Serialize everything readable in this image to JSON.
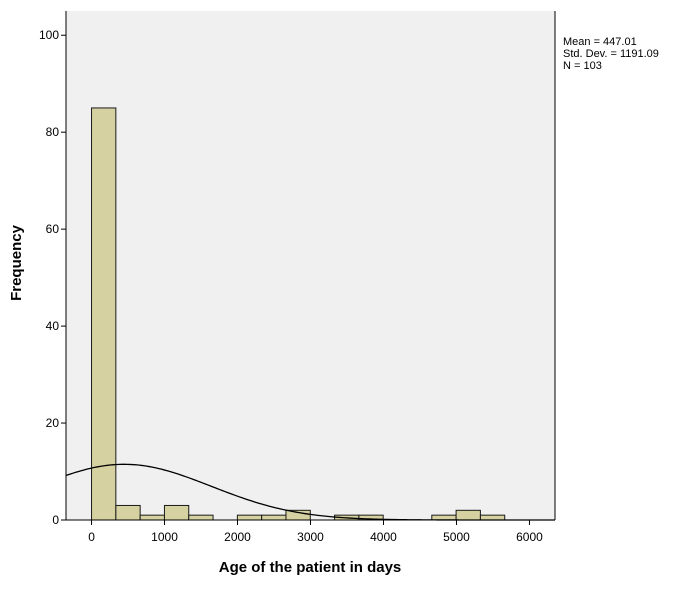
{
  "chart_data": {
    "type": "bar",
    "subtype": "histogram",
    "xlabel": "Age of the patient in days",
    "ylabel": "Frequency",
    "xlim": [
      -350,
      6350
    ],
    "ylim": [
      0,
      105
    ],
    "xticks": [
      0,
      1000,
      2000,
      3000,
      4000,
      5000,
      6000
    ],
    "yticks": [
      0,
      20,
      40,
      60,
      80,
      100
    ],
    "bin_width": 333,
    "bins": [
      {
        "start": 0,
        "end": 333,
        "count": 85
      },
      {
        "start": 333,
        "end": 666,
        "count": 3
      },
      {
        "start": 666,
        "end": 999,
        "count": 1
      },
      {
        "start": 999,
        "end": 1332,
        "count": 3
      },
      {
        "start": 1332,
        "end": 1665,
        "count": 1
      },
      {
        "start": 1998,
        "end": 2331,
        "count": 1
      },
      {
        "start": 2331,
        "end": 2664,
        "count": 1
      },
      {
        "start": 2664,
        "end": 2997,
        "count": 2
      },
      {
        "start": 3330,
        "end": 3663,
        "count": 1
      },
      {
        "start": 3663,
        "end": 3996,
        "count": 1
      },
      {
        "start": 4662,
        "end": 4995,
        "count": 1
      },
      {
        "start": 4995,
        "end": 5328,
        "count": 2
      },
      {
        "start": 5328,
        "end": 5661,
        "count": 1
      }
    ],
    "normal_curve": {
      "mean": 447.01,
      "std_dev": 1191.09,
      "n": 103
    },
    "stats": [
      "Mean = 447.01",
      "Std. Dev. = 1191.09",
      "N = 103"
    ],
    "grid": false,
    "legend_position": "top-right",
    "colors": {
      "bar_fill": "#d6d1a1",
      "bar_stroke": "#1a1a1a",
      "plot_bg": "#f0f0f0",
      "curve": "#000000"
    }
  }
}
